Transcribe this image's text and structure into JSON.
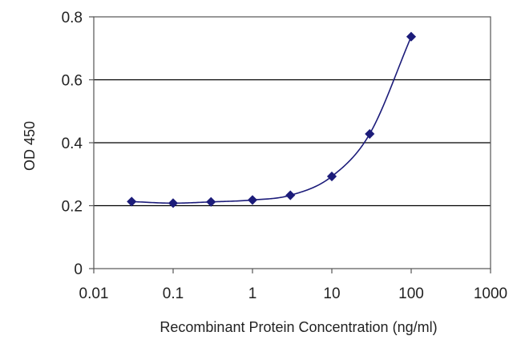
{
  "chart_data": {
    "type": "scatter",
    "title": "",
    "xlabel": "Recombinant Protein Concentration (ng/ml)",
    "ylabel": "OD 450",
    "x_scale": "log",
    "xlim": [
      0.01,
      1000
    ],
    "ylim": [
      0,
      0.8
    ],
    "x_ticks": [
      0.01,
      0.1,
      1,
      10,
      100,
      1000
    ],
    "x_tick_labels": [
      "0.01",
      "0.1",
      "1",
      "10",
      "100",
      "1000"
    ],
    "y_ticks": [
      0,
      0.2,
      0.4,
      0.6,
      0.8
    ],
    "y_tick_labels": [
      "0",
      "0.2",
      "0.4",
      "0.6",
      "0.8"
    ],
    "grid": "horizontal",
    "legend": "none",
    "colors": {
      "series": "#1c1c7a",
      "grid": "#000000",
      "axis": "#555555"
    },
    "series": [
      {
        "x": [
          0.03,
          0.1,
          0.3,
          1,
          3,
          10,
          30,
          100
        ],
        "y": [
          0.213,
          0.208,
          0.212,
          0.218,
          0.233,
          0.293,
          0.428,
          0.737
        ],
        "fit": "sigmoid"
      }
    ]
  }
}
